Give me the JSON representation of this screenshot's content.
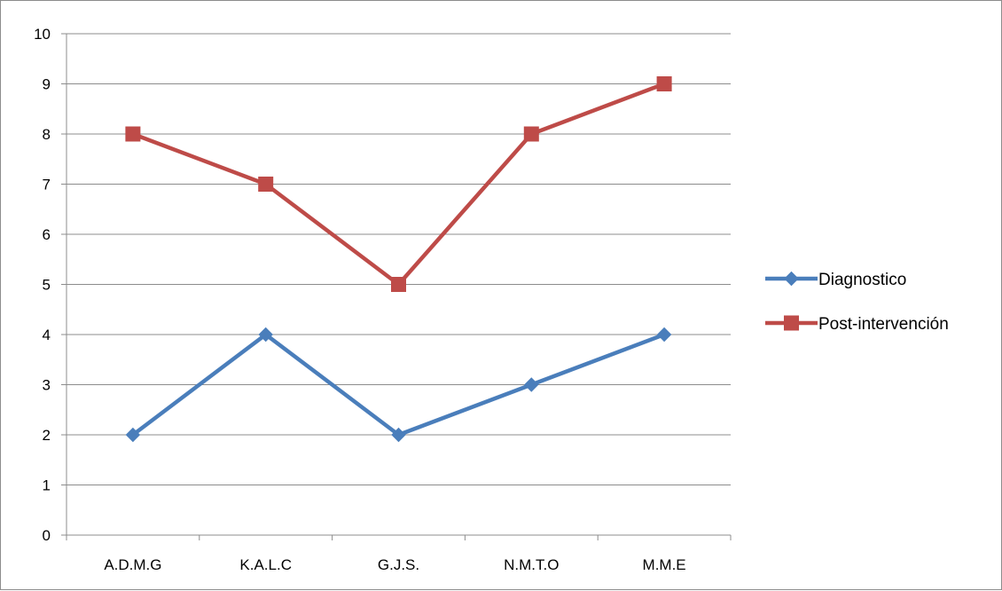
{
  "chart_data": {
    "type": "line",
    "title": "",
    "xlabel": "",
    "ylabel": "",
    "categories": [
      "A.D.M.G",
      "K.A.L.C",
      "G.J.S.",
      "N.M.T.O",
      "M.M.E"
    ],
    "ylim": [
      0,
      10
    ],
    "yticks": [
      0,
      1,
      2,
      3,
      4,
      5,
      6,
      7,
      8,
      9,
      10
    ],
    "grid": true,
    "legend_position": "right",
    "series": [
      {
        "name": "Diagnostico",
        "values": [
          2,
          4,
          2,
          3,
          4
        ],
        "color": "#4a7ebb",
        "marker": "diamond"
      },
      {
        "name": "Post-intervención",
        "values": [
          8,
          7,
          5,
          8,
          9
        ],
        "color": "#be4b48",
        "marker": "square"
      }
    ]
  }
}
